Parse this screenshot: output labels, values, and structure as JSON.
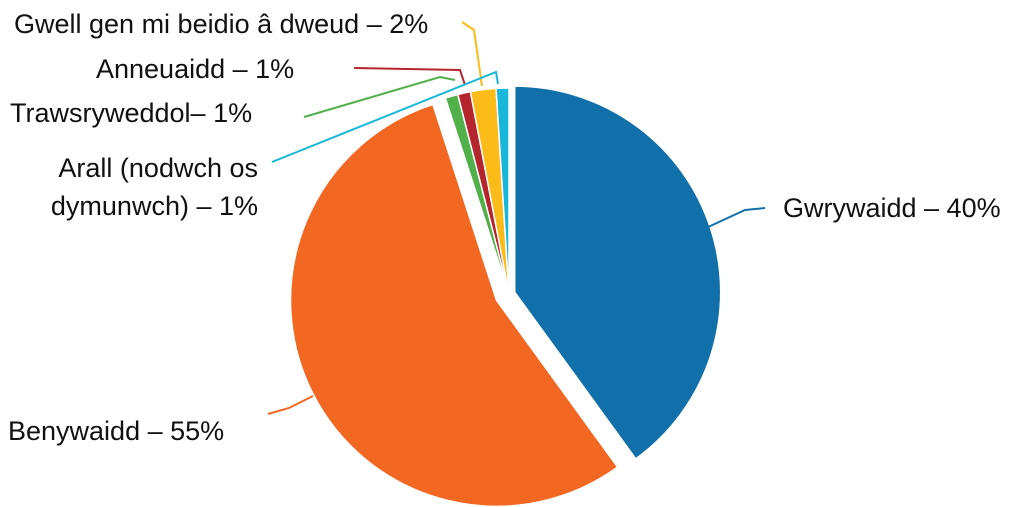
{
  "chart_data": {
    "type": "pie",
    "title": "",
    "start_angle_deg": 0,
    "direction": "clockwise",
    "exploded": [
      "Gwrywaidd",
      "Benywaidd"
    ],
    "slices": [
      {
        "name": "Gwrywaidd",
        "value": 40,
        "color": "#1170aa",
        "label_lines": [
          "Gwrywaidd – 40%"
        ]
      },
      {
        "name": "Benywaidd",
        "value": 55,
        "color": "#f26722",
        "label_lines": [
          "Benywaidd – 55%"
        ]
      },
      {
        "name": "Trawsryweddol",
        "value": 1,
        "color": "#52b04b",
        "label_lines": [
          "Trawsryweddol– 1%"
        ]
      },
      {
        "name": "Anneuaidd",
        "value": 1,
        "color": "#b5252d",
        "label_lines": [
          "Anneuaidd – 1%"
        ]
      },
      {
        "name": "Gwell gen mi beidio â dweud",
        "value": 2,
        "color": "#fbbc1a",
        "label_lines": [
          "Gwell gen mi beidio â dweud – 2%"
        ]
      },
      {
        "name": "Arall (nodwch os dymunwch)",
        "value": 1,
        "color": "#16b7d8",
        "label_lines": [
          "Arall (nodwch os",
          "dymunwch) – 1%"
        ]
      }
    ]
  }
}
